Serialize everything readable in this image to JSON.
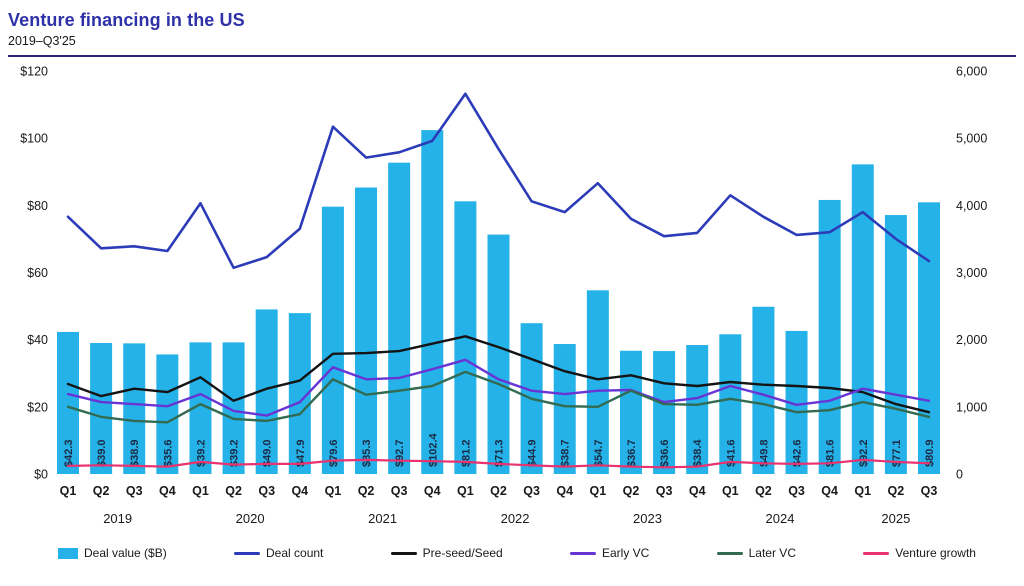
{
  "header": {
    "title": "Venture financing in the US",
    "subtitle": "2019–Q3'25"
  },
  "colors": {
    "title": "#2e31a8",
    "rule": "#28247e",
    "bar": "#25b2e8",
    "bar_label": "#1b2b45",
    "axis_text": "#1a1a1a",
    "deal_count": "#2c3cb8",
    "pre_seed": "#141414",
    "early_vc": "#6934d4",
    "later_vc": "#336b52",
    "venture_growth": "#e9326e"
  },
  "chart_data": {
    "type": "bar+line",
    "title": "Venture financing in the US",
    "subtitle": "2019–Q3'25",
    "grid": false,
    "categories": [
      "Q1",
      "Q2",
      "Q3",
      "Q4",
      "Q1",
      "Q2",
      "Q3",
      "Q4",
      "Q1",
      "Q2",
      "Q3",
      "Q4",
      "Q1",
      "Q2",
      "Q3",
      "Q4",
      "Q1",
      "Q2",
      "Q3",
      "Q4",
      "Q1",
      "Q2",
      "Q3",
      "Q4",
      "Q1",
      "Q2",
      "Q3"
    ],
    "years": [
      {
        "label": "2019",
        "quarters": [
          0,
          1,
          2,
          3
        ]
      },
      {
        "label": "2020",
        "quarters": [
          4,
          5,
          6,
          7
        ]
      },
      {
        "label": "2021",
        "quarters": [
          8,
          9,
          10,
          11
        ]
      },
      {
        "label": "2022",
        "quarters": [
          12,
          13,
          14,
          15
        ]
      },
      {
        "label": "2023",
        "quarters": [
          16,
          17,
          18,
          19
        ]
      },
      {
        "label": "2024",
        "quarters": [
          20,
          21,
          22,
          23
        ]
      },
      {
        "label": "2025",
        "quarters": [
          24,
          25,
          26
        ]
      }
    ],
    "left_axis": {
      "min": 0,
      "max": 120,
      "tick_values": [
        120,
        100,
        80,
        60,
        40,
        20,
        0
      ],
      "tick_labels": [
        "$120",
        "$100",
        "$80",
        "$60",
        "$40",
        "$20",
        "$0"
      ]
    },
    "right_axis": {
      "min": 0,
      "max": 6000,
      "tick_values": [
        6000,
        5000,
        4000,
        3000,
        2000,
        1000,
        0
      ],
      "tick_labels": [
        "6,000",
        "5,000",
        "4,000",
        "3,000",
        "2,000",
        "1,000",
        "0"
      ]
    },
    "bars": {
      "name": "Deal value ($B)",
      "axis": "left",
      "color_key": "bar",
      "values": [
        42.3,
        39.0,
        38.9,
        35.6,
        39.2,
        39.2,
        49.0,
        47.9,
        79.6,
        85.3,
        92.7,
        102.4,
        81.2,
        71.3,
        44.9,
        38.7,
        54.7,
        36.7,
        36.6,
        38.4,
        41.6,
        49.8,
        42.6,
        81.6,
        92.2,
        77.1,
        80.9
      ],
      "labels": [
        "$42.3",
        "$39.0",
        "$38.9",
        "$35.6",
        "$39.2",
        "$39.2",
        "$49.0",
        "$47.9",
        "$79.6",
        "$85.3",
        "$92.7",
        "$102.4",
        "$81.2",
        "$71.3",
        "$44.9",
        "$38.7",
        "$54.7",
        "$36.7",
        "$36.6",
        "$38.4",
        "$41.6",
        "$49.8",
        "$42.6",
        "$81.6",
        "$92.2",
        "$77.1",
        "$80.9"
      ]
    },
    "series": [
      {
        "name": "Deal count",
        "axis": "right",
        "color_key": "deal_count",
        "width": 2.6,
        "values": [
          3830,
          3360,
          3390,
          3320,
          4030,
          3070,
          3230,
          3650,
          5170,
          4710,
          4790,
          4960,
          5660,
          4840,
          4060,
          3900,
          4330,
          3800,
          3540,
          3590,
          4150,
          3830,
          3560,
          3600,
          3900,
          3500,
          3170
        ]
      },
      {
        "name": "Pre-seed/Seed",
        "axis": "right",
        "color_key": "pre_seed",
        "width": 2.4,
        "values": [
          1340,
          1160,
          1270,
          1220,
          1440,
          1090,
          1270,
          1390,
          1790,
          1800,
          1830,
          1940,
          2050,
          1890,
          1710,
          1530,
          1410,
          1470,
          1350,
          1310,
          1370,
          1330,
          1310,
          1280,
          1220,
          1040,
          920
        ]
      },
      {
        "name": "Early VC",
        "axis": "right",
        "color_key": "early_vc",
        "width": 2.4,
        "values": [
          1190,
          1070,
          1040,
          1010,
          1190,
          940,
          870,
          1070,
          1590,
          1410,
          1430,
          1560,
          1700,
          1410,
          1240,
          1190,
          1240,
          1250,
          1070,
          1130,
          1310,
          1180,
          1030,
          1090,
          1270,
          1180,
          1090
        ]
      },
      {
        "name": "Later VC",
        "axis": "right",
        "color_key": "later_vc",
        "width": 2.4,
        "values": [
          1000,
          850,
          790,
          770,
          1040,
          820,
          790,
          890,
          1410,
          1180,
          1240,
          1310,
          1520,
          1340,
          1120,
          1010,
          1000,
          1240,
          1040,
          1030,
          1120,
          1040,
          920,
          950,
          1070,
          970,
          850
        ]
      },
      {
        "name": "Venture growth",
        "axis": "right",
        "color_key": "venture_growth",
        "width": 2.2,
        "values": [
          120,
          130,
          120,
          110,
          180,
          140,
          150,
          150,
          200,
          210,
          200,
          190,
          180,
          150,
          130,
          110,
          130,
          110,
          100,
          110,
          180,
          160,
          150,
          160,
          210,
          180,
          160
        ]
      }
    ]
  },
  "legend": [
    {
      "label": "Deal value ($B)",
      "type": "swatch",
      "color_key": "bar"
    },
    {
      "label": "Deal count",
      "type": "line",
      "color_key": "deal_count"
    },
    {
      "label": "Pre-seed/Seed",
      "type": "line",
      "color_key": "pre_seed"
    },
    {
      "label": "Early VC",
      "type": "line",
      "color_key": "early_vc"
    },
    {
      "label": "Later VC",
      "type": "line",
      "color_key": "later_vc"
    },
    {
      "label": "Venture growth",
      "type": "line",
      "color_key": "venture_growth"
    }
  ]
}
